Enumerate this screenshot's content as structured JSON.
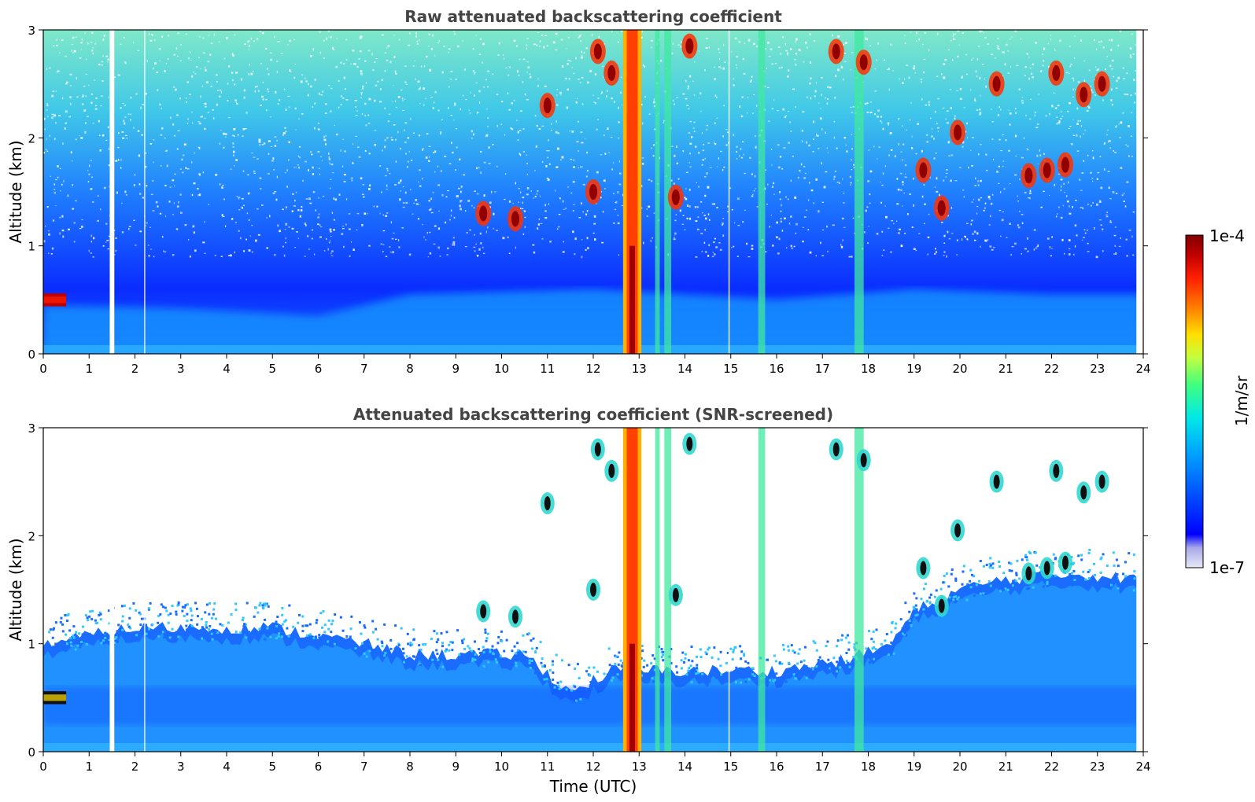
{
  "chart_data": [
    {
      "type": "heatmap",
      "title": "Raw attenuated backscattering coefficient",
      "xlabel": "",
      "ylabel": "Altitude (km)",
      "xlim": [
        0,
        24
      ],
      "ylim": [
        0,
        3
      ],
      "x_ticks": [
        "0",
        "1",
        "2",
        "3",
        "4",
        "5",
        "6",
        "7",
        "8",
        "9",
        "10",
        "11",
        "12",
        "13",
        "14",
        "15",
        "16",
        "17",
        "18",
        "19",
        "20",
        "21",
        "22",
        "23",
        "24"
      ],
      "y_ticks": [
        "0",
        "1",
        "2",
        "3"
      ],
      "screening": "raw",
      "features": {
        "boundary_layer_top_km": [
          [
            0,
            0.45
          ],
          [
            3,
            0.42
          ],
          [
            6,
            0.35
          ],
          [
            8,
            0.55
          ],
          [
            12,
            0.6
          ],
          [
            16,
            0.5
          ],
          [
            19,
            0.6
          ],
          [
            22,
            0.55
          ],
          [
            23.8,
            0.55
          ]
        ],
        "data_gaps_hours": [
          [
            1.45,
            1.55
          ],
          [
            23.85,
            24
          ]
        ],
        "thin_gaps_hours": [
          2.2,
          14.95
        ],
        "low_cloud_layer": {
          "x_start": 0.0,
          "x_end": 0.5,
          "altitude_km": 0.5
        },
        "precipitation_columns_hours": [
          [
            12.65,
            13.05
          ]
        ],
        "vertical_streaks_hours": [
          [
            13.35,
            13.45
          ],
          [
            13.55,
            13.7
          ],
          [
            15.6,
            15.75
          ],
          [
            17.7,
            17.9
          ]
        ],
        "cloud_patches": [
          {
            "x": 11.0,
            "y": 2.3
          },
          {
            "x": 12.1,
            "y": 2.8
          },
          {
            "x": 12.4,
            "y": 2.6
          },
          {
            "x": 13.8,
            "y": 1.45
          },
          {
            "x": 14.1,
            "y": 2.85
          },
          {
            "x": 17.3,
            "y": 2.8
          },
          {
            "x": 17.9,
            "y": 2.7
          },
          {
            "x": 19.2,
            "y": 1.7
          },
          {
            "x": 19.6,
            "y": 1.35
          },
          {
            "x": 19.95,
            "y": 2.05
          },
          {
            "x": 21.5,
            "y": 1.65
          },
          {
            "x": 21.9,
            "y": 1.7
          },
          {
            "x": 22.3,
            "y": 1.75
          },
          {
            "x": 22.1,
            "y": 2.6
          },
          {
            "x": 22.7,
            "y": 2.4
          },
          {
            "x": 23.1,
            "y": 2.5
          },
          {
            "x": 20.8,
            "y": 2.5
          },
          {
            "x": 9.6,
            "y": 1.3
          },
          {
            "x": 10.3,
            "y": 1.25
          },
          {
            "x": 12.0,
            "y": 1.5
          }
        ]
      }
    },
    {
      "type": "heatmap",
      "title": "Attenuated backscattering coefficient (SNR-screened)",
      "xlabel": "Time (UTC)",
      "ylabel": "Altitude (km)",
      "xlim": [
        0,
        24
      ],
      "ylim": [
        0,
        3
      ],
      "x_ticks": [
        "0",
        "1",
        "2",
        "3",
        "4",
        "5",
        "6",
        "7",
        "8",
        "9",
        "10",
        "11",
        "12",
        "13",
        "14",
        "15",
        "16",
        "17",
        "18",
        "19",
        "20",
        "21",
        "22",
        "23",
        "24"
      ],
      "y_ticks": [
        "0",
        "1",
        "2",
        "3"
      ],
      "screening": "snr",
      "features": {
        "signal_top_km": [
          [
            0,
            1.0
          ],
          [
            2,
            1.15
          ],
          [
            5,
            1.15
          ],
          [
            7,
            1.0
          ],
          [
            8,
            0.9
          ],
          [
            9,
            0.9
          ],
          [
            10.5,
            0.9
          ],
          [
            11.5,
            0.55
          ],
          [
            12.4,
            0.75
          ],
          [
            14.5,
            0.75
          ],
          [
            16,
            0.75
          ],
          [
            17.5,
            0.85
          ],
          [
            18.5,
            1.0
          ],
          [
            19,
            1.3
          ],
          [
            20,
            1.5
          ],
          [
            21,
            1.6
          ],
          [
            22.5,
            1.65
          ],
          [
            23.8,
            1.6
          ]
        ]
      }
    }
  ],
  "colorbar": {
    "label": "1/m/sr",
    "max_label": "1e-4",
    "min_label": "1e-7",
    "scale": "log",
    "range": [
      1e-07,
      0.0001
    ],
    "colormap": "jet",
    "colors": [
      "#e8e8f8",
      "#c8c8f0",
      "#a8a8e8",
      "#0000ff",
      "#0050ff",
      "#00a0ff",
      "#00e8e8",
      "#40ff80",
      "#c0ff40",
      "#ffe000",
      "#ff8000",
      "#ff2000",
      "#c00000",
      "#800000"
    ]
  }
}
